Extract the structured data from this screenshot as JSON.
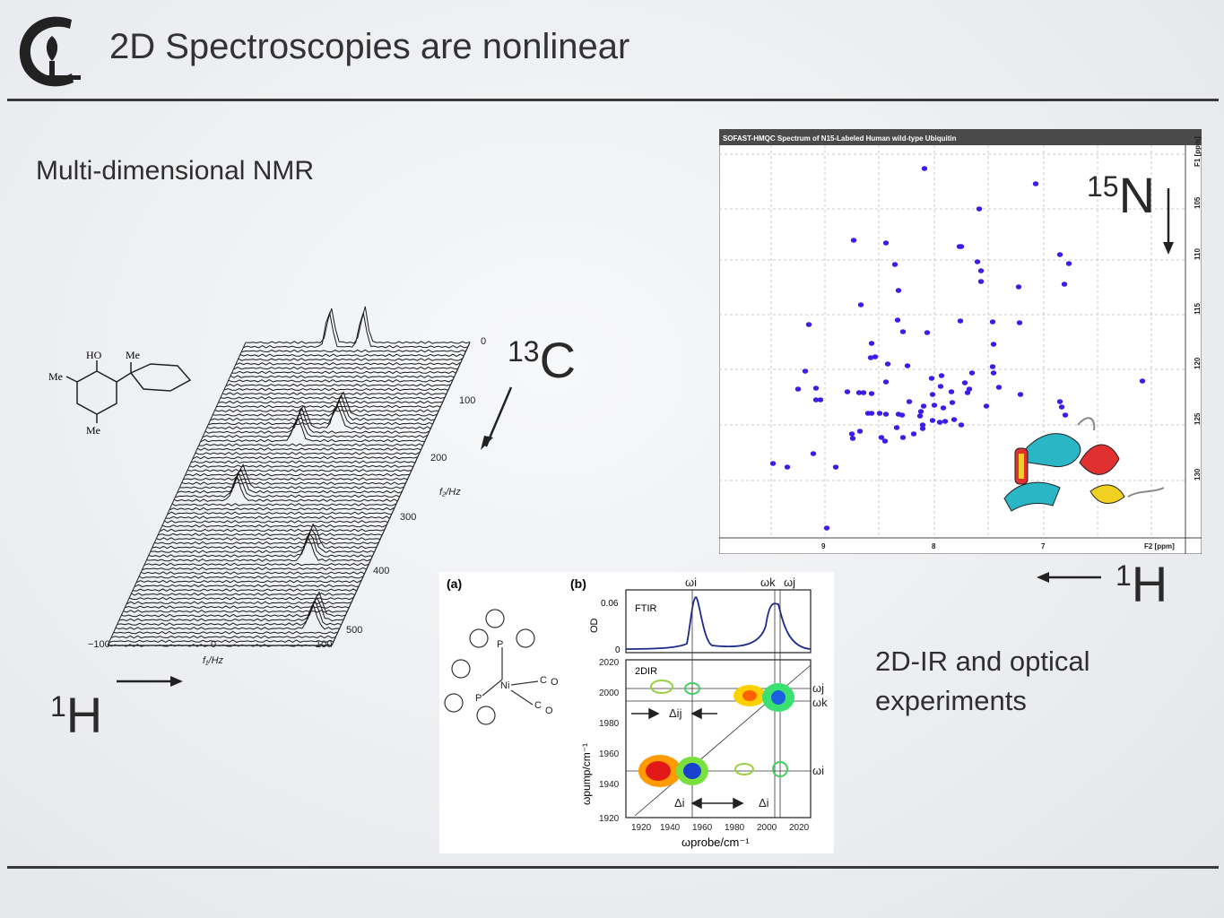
{
  "header": {
    "title": "2D Spectroscopies are nonlinear",
    "logo_icon": "cornell-c-torch-logo"
  },
  "left": {
    "heading": "Multi-dimensional NMR",
    "molecule_labels": [
      "HO",
      "Me",
      "Me",
      "Me"
    ],
    "carbon_sup": "13",
    "carbon_el": "C",
    "proton_sup": "1",
    "proton_el": "H",
    "f2_ticks": [
      "0",
      "100",
      "200",
      "300",
      "400",
      "500"
    ],
    "f2_label": "f₂/Hz",
    "f1_ticks": [
      "−100",
      "0",
      "100"
    ],
    "f1_label": "f₁/Hz"
  },
  "right": {
    "hmqc_title": "SOFAST-HMQC Spectrum of N15-Labeled Human wild-type Ubiquitin",
    "f1_axis_label": "F1 [ppm]",
    "f1_ticks": [
      "105",
      "110",
      "115",
      "120",
      "125",
      "130"
    ],
    "f2_ticks": [
      "9",
      "8",
      "7"
    ],
    "f2_axis_label": "F2 [ppm]",
    "nitrogen_sup": "15",
    "nitrogen_el": "N",
    "proton_sup": "1",
    "proton_el": "H"
  },
  "ir": {
    "panel_a": "(a)",
    "panel_b": "(b)",
    "mol_labels": [
      "P",
      "P",
      "Ni",
      "C",
      "O",
      "C",
      "O"
    ],
    "ftir": "FTIR",
    "twodir": "2DIR",
    "od": "OD",
    "od_ticks": [
      "0.06",
      "0"
    ],
    "pump_ticks": [
      "2020",
      "2000",
      "1980",
      "1960",
      "1940",
      "1920"
    ],
    "probe_ticks": [
      "1920",
      "1940",
      "1960",
      "1980",
      "2000",
      "2020"
    ],
    "pump_label": "ωpump/cm⁻¹",
    "probe_label": "ωprobe/cm⁻¹",
    "omega_i": "ωi",
    "omega_k": "ωk",
    "omega_j": "ωj",
    "delta_ij": "Δij",
    "delta_i": "Δi"
  },
  "caption": {
    "line1": "2D-IR and optical",
    "line2": "experiments"
  }
}
